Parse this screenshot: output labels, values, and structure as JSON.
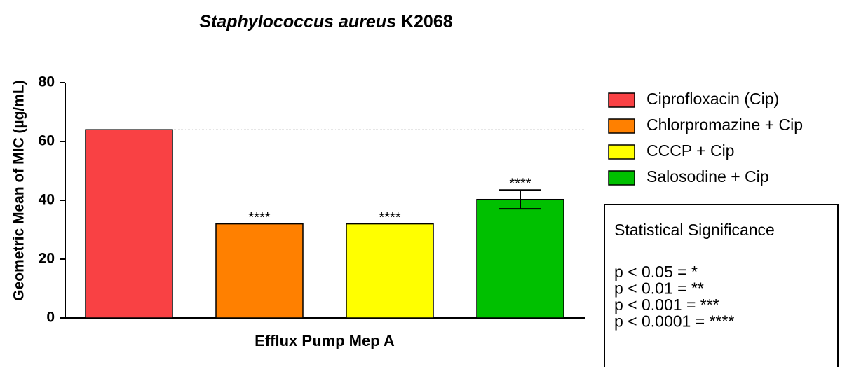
{
  "chart_data": {
    "type": "bar",
    "title": {
      "species": "Staphylococcus aureus",
      "strain": "K2068"
    },
    "x_label": "Efflux Pump Mep A",
    "y_label": "Geometric Mean of MIC (µg/mL)",
    "categories": [
      "Efflux Pump Mep A"
    ],
    "series": [
      {
        "name": "Ciprofloxacin (Cip)",
        "color": "#f94144",
        "values": [
          64
        ]
      },
      {
        "name": "Chlorpromazine + Cip",
        "color": "#ff8000",
        "values": [
          32
        ],
        "annotation": "****"
      },
      {
        "name": "CCCP + Cip",
        "color": "#ffff00",
        "values": [
          32
        ],
        "annotation": "****"
      },
      {
        "name": "Salosodine + Cip",
        "color": "#00c000",
        "values": [
          40.3
        ],
        "errors": [
          3.2
        ],
        "annotation": "****"
      }
    ],
    "reference_line": 64,
    "ylim": [
      0,
      80
    ],
    "yticks": [
      0,
      20,
      40,
      60,
      80
    ],
    "significance": {
      "title": "Statistical Significance",
      "lines": [
        "p < 0.05 = *",
        "p < 0.01 = **",
        "p < 0.001 = ***",
        "p < 0.0001 = ****"
      ]
    }
  }
}
